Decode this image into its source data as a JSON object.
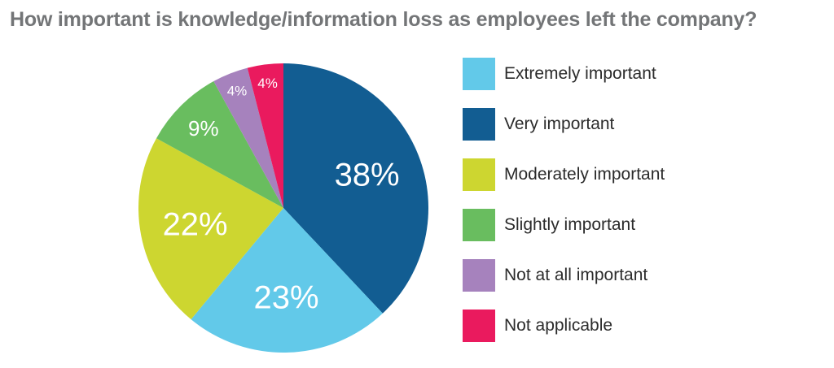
{
  "chart_data": {
    "type": "pie",
    "title": "How important is knowledge/information loss as employees left the company?",
    "start_angle_deg": 0,
    "direction": "clockwise",
    "legend_position": "right",
    "slices": [
      {
        "label": "Very important",
        "value": 38,
        "display": "38%",
        "color": "#125d92"
      },
      {
        "label": "Extremely important",
        "value": 23,
        "display": "23%",
        "color": "#62c9e9"
      },
      {
        "label": "Moderately important",
        "value": 22,
        "display": "22%",
        "color": "#cdd630"
      },
      {
        "label": "Slightly important",
        "value": 9,
        "display": "9%",
        "color": "#69bd5f"
      },
      {
        "label": "Not at all important",
        "value": 4,
        "display": "4%",
        "color": "#a682bd"
      },
      {
        "label": "Not applicable",
        "value": 4,
        "display": "4%",
        "color": "#ea1a5e"
      }
    ],
    "legend_order": [
      "Extremely important",
      "Very important",
      "Moderately important",
      "Slightly important",
      "Not at all important",
      "Not applicable"
    ]
  }
}
